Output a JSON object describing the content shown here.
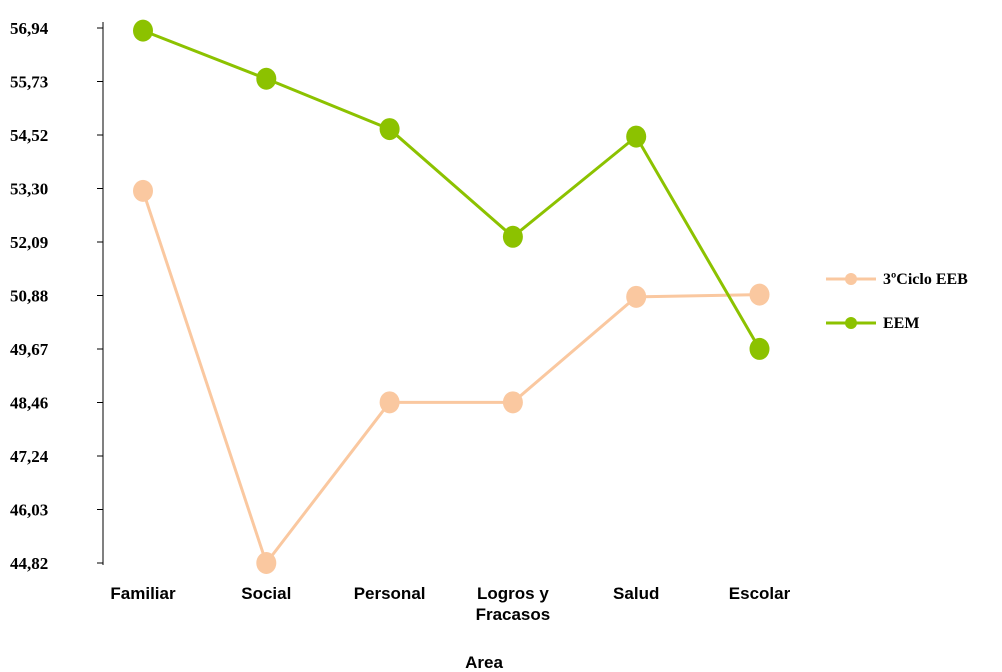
{
  "chart_data": {
    "type": "line",
    "title": "",
    "xlabel": "Area",
    "ylabel": "",
    "categories": [
      "Familiar",
      "Social",
      "Personal",
      "Logros y|Fracasos",
      "Salud",
      "Escolar"
    ],
    "y_ticks": [
      "44,82",
      "46,03",
      "47,24",
      "48,46",
      "49,67",
      "50,88",
      "52,09",
      "53,30",
      "54,52",
      "55,73",
      "56,94"
    ],
    "ylim": [
      44.82,
      56.94
    ],
    "grid": false,
    "legend_position": "right",
    "series": [
      {
        "name": "3ºCiclo EEB",
        "color": "#FAC8A0",
        "values": [
          53.25,
          44.82,
          48.46,
          48.46,
          50.85,
          50.9
        ]
      },
      {
        "name": "EEM",
        "color": "#8CC200",
        "values": [
          56.88,
          55.79,
          54.65,
          52.21,
          54.48,
          49.67
        ]
      }
    ]
  }
}
